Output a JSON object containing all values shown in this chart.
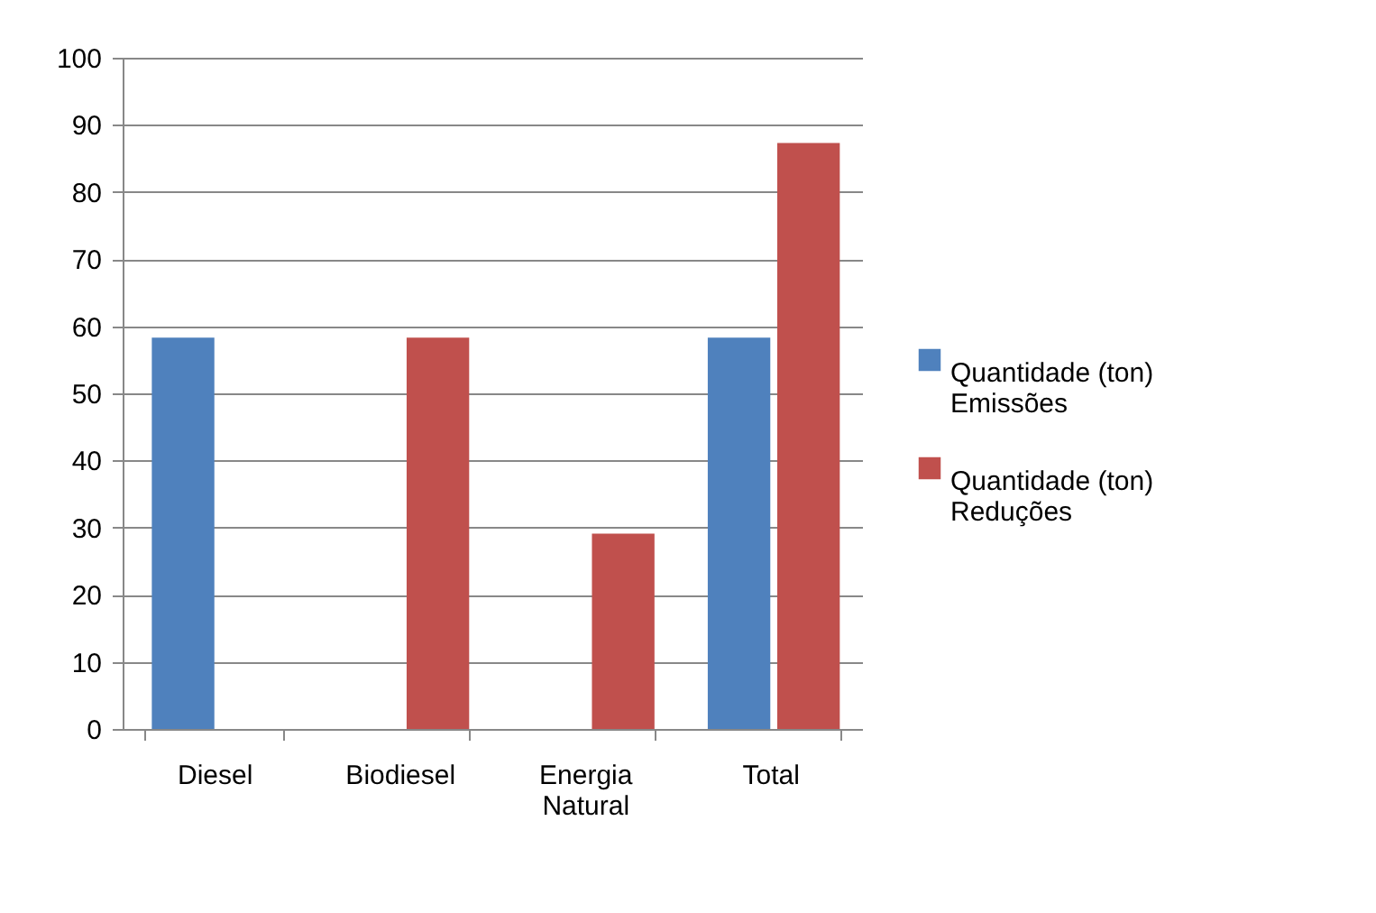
{
  "chart_data": {
    "type": "bar",
    "categories": [
      "Diesel",
      "Biodiesel",
      "Energia Natural",
      "Total"
    ],
    "series": [
      {
        "name": "Quantidade (ton) Emissões",
        "color": "#4f81bd",
        "values": [
          58.3,
          null,
          null,
          58.3
        ]
      },
      {
        "name": "Quantidade (ton) Reduções",
        "color": "#c0504d",
        "values": [
          null,
          58.3,
          29.1,
          87.3
        ]
      }
    ],
    "ylim": [
      0,
      100
    ],
    "yticks": [
      0,
      10,
      20,
      30,
      40,
      50,
      60,
      70,
      80,
      90,
      100
    ],
    "grid": "y",
    "legend": "right"
  }
}
